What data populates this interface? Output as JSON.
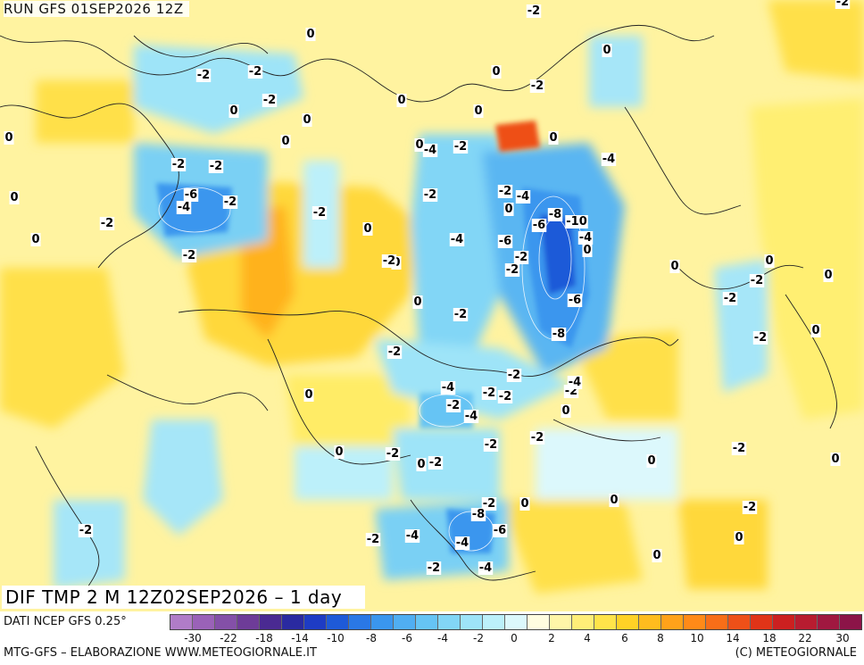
{
  "header": {
    "run_title": "RUN GFS 01SEP2026 12Z"
  },
  "map": {
    "title": "DIF TMP 2 M 12Z02SEP2026 – 1 day",
    "contour_labels": [
      {
        "v": "-2"
      },
      {
        "v": "-2"
      },
      {
        "v": "0"
      },
      {
        "v": "-2"
      },
      {
        "v": "-2"
      },
      {
        "v": "0"
      },
      {
        "v": "0"
      },
      {
        "v": "-2"
      },
      {
        "v": "0"
      },
      {
        "v": "0"
      },
      {
        "v": "0"
      },
      {
        "v": "0"
      },
      {
        "v": "-2"
      },
      {
        "v": "-4"
      },
      {
        "v": "0"
      },
      {
        "v": "-6"
      },
      {
        "v": "-4"
      },
      {
        "v": "-2"
      },
      {
        "v": "0"
      },
      {
        "v": "-2"
      },
      {
        "v": "0"
      },
      {
        "v": "-2"
      },
      {
        "v": "-2"
      },
      {
        "v": "0"
      },
      {
        "v": "-4"
      },
      {
        "v": "-2"
      },
      {
        "v": "-2"
      },
      {
        "v": "-4"
      },
      {
        "v": "-8"
      },
      {
        "v": "-6"
      },
      {
        "v": "-10"
      },
      {
        "v": "-2"
      },
      {
        "v": "-4"
      },
      {
        "v": "-4"
      },
      {
        "v": "-6"
      },
      {
        "v": "-2"
      },
      {
        "v": "0"
      },
      {
        "v": "-2"
      },
      {
        "v": "-6"
      },
      {
        "v": "-8"
      },
      {
        "v": "0"
      },
      {
        "v": "0"
      },
      {
        "v": "-2"
      },
      {
        "v": "-2"
      },
      {
        "v": "0"
      },
      {
        "v": "0"
      },
      {
        "v": "-2"
      },
      {
        "v": "-4"
      },
      {
        "v": "-2"
      },
      {
        "v": "-2"
      },
      {
        "v": "-2"
      },
      {
        "v": "-4"
      },
      {
        "v": "-2"
      },
      {
        "v": "0"
      },
      {
        "v": "-4"
      },
      {
        "v": "-2"
      },
      {
        "v": "0"
      },
      {
        "v": "0"
      },
      {
        "v": "0"
      },
      {
        "v": "-2"
      },
      {
        "v": "0"
      },
      {
        "v": "-2"
      },
      {
        "v": "-2"
      },
      {
        "v": "-2"
      },
      {
        "v": "-2"
      },
      {
        "v": "-2"
      },
      {
        "v": "0"
      },
      {
        "v": "-2"
      },
      {
        "v": "0"
      },
      {
        "v": "0"
      },
      {
        "v": "-2"
      },
      {
        "v": "0"
      },
      {
        "v": "-2"
      },
      {
        "v": "-4"
      },
      {
        "v": "-8"
      },
      {
        "v": "-6"
      },
      {
        "v": "-4"
      },
      {
        "v": "-2"
      },
      {
        "v": "-4"
      },
      {
        "v": "0"
      },
      {
        "v": "0"
      },
      {
        "v": "-2"
      },
      {
        "v": "-2"
      },
      {
        "v": "0"
      },
      {
        "v": "0"
      },
      {
        "v": "-2"
      },
      {
        "v": "0"
      },
      {
        "v": "-2"
      },
      {
        "v": "0"
      },
      {
        "v": "0"
      },
      {
        "v": "-2"
      }
    ]
  },
  "colorbar": {
    "colors": [
      "#b07cc8",
      "#9a62b8",
      "#8450a8",
      "#6e3c98",
      "#4a2a92",
      "#2a2aa0",
      "#1e3cc4",
      "#1e5ad8",
      "#2a78e6",
      "#3a96ee",
      "#50aef2",
      "#66c4f4",
      "#82d6f6",
      "#9ee4f8",
      "#bcf0fa",
      "#dcf8fc",
      "#fffde0",
      "#fff6a8",
      "#ffee78",
      "#ffe44a",
      "#ffd226",
      "#ffbc1e",
      "#ffa21a",
      "#ff8a18",
      "#f86e18",
      "#ee5018",
      "#e03418",
      "#cc2020",
      "#b81c30",
      "#a01840",
      "#8c1448"
    ],
    "ticks": [
      "-30",
      "-22",
      "-18",
      "-14",
      "-10",
      "-8",
      "-6",
      "-4",
      "-2",
      "0",
      "2",
      "4",
      "6",
      "8",
      "10",
      "14",
      "18",
      "22",
      "30"
    ]
  },
  "footer": {
    "source": "DATI NCEP GFS 0.25°",
    "credit": "MTG-GFS – ELABORAZIONE WWW.METEOGIORNALE.IT",
    "copyright": "(C) METEOGIORNALE"
  }
}
